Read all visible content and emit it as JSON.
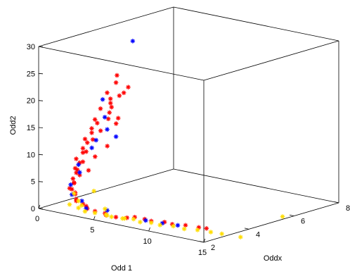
{
  "chart_data": {
    "type": "scatter3d",
    "title": "",
    "xlabel": "Odd 1",
    "ylabel": "Oddx",
    "zlabel": "Odd2",
    "xlim": [
      0,
      15
    ],
    "ylim": [
      2,
      8
    ],
    "zlim": [
      0,
      30
    ],
    "xticks": [
      "0",
      "5",
      "10",
      "15"
    ],
    "yticks": [
      "2",
      "4",
      "6",
      "8"
    ],
    "zticks": [
      "0",
      "5",
      "10",
      "15",
      "20",
      "25",
      "30"
    ],
    "marker": "*",
    "grid": false,
    "box": true,
    "series": [
      {
        "color": "#ff0000",
        "points": [
          [
            6.5,
            2.3,
            27
          ],
          [
            5.8,
            2.6,
            25
          ],
          [
            5.2,
            2.5,
            23
          ],
          [
            6.1,
            2.8,
            23
          ],
          [
            5.5,
            2.5,
            22
          ],
          [
            5.9,
            2.7,
            22.5
          ],
          [
            6.3,
            2.9,
            24
          ],
          [
            5.3,
            2.6,
            21
          ],
          [
            4.8,
            2.4,
            20
          ],
          [
            5.6,
            2.5,
            20.5
          ],
          [
            5.0,
            2.7,
            19
          ],
          [
            4.5,
            2.3,
            18
          ],
          [
            4.3,
            2.5,
            17
          ],
          [
            5.1,
            2.6,
            18
          ],
          [
            4.0,
            2.4,
            16
          ],
          [
            3.8,
            2.5,
            15
          ],
          [
            4.4,
            2.6,
            15.5
          ],
          [
            3.6,
            2.3,
            14
          ],
          [
            3.4,
            2.5,
            13
          ],
          [
            4.1,
            2.4,
            14
          ],
          [
            3.2,
            2.4,
            12
          ],
          [
            3.0,
            2.5,
            11
          ],
          [
            3.5,
            2.4,
            11.5
          ],
          [
            2.8,
            2.3,
            10
          ],
          [
            2.7,
            2.5,
            9
          ],
          [
            3.2,
            2.4,
            9.5
          ],
          [
            2.5,
            2.4,
            8
          ],
          [
            2.4,
            2.5,
            7
          ],
          [
            2.9,
            2.3,
            8
          ],
          [
            2.3,
            2.4,
            6
          ],
          [
            2.2,
            2.5,
            5
          ],
          [
            2.6,
            2.3,
            5.5
          ],
          [
            2.2,
            2.4,
            4
          ],
          [
            2.3,
            2.5,
            3
          ],
          [
            2.5,
            2.4,
            3.5
          ],
          [
            2.6,
            2.4,
            2
          ],
          [
            3.0,
            2.5,
            1.5
          ],
          [
            2.8,
            2.3,
            2.5
          ],
          [
            3.6,
            2.4,
            1
          ],
          [
            3.3,
            2.5,
            1.2
          ],
          [
            4.3,
            2.4,
            0.8
          ],
          [
            5.0,
            2.5,
            0.6
          ],
          [
            5.5,
            2.3,
            0.7
          ],
          [
            6.2,
            2.4,
            0.5
          ],
          [
            7.0,
            2.5,
            0.6
          ],
          [
            7.5,
            2.6,
            0.8
          ],
          [
            8.2,
            2.7,
            0.6
          ],
          [
            9.0,
            2.6,
            0.7
          ],
          [
            9.8,
            2.8,
            0.6
          ],
          [
            10.5,
            2.8,
            0.5
          ],
          [
            11.5,
            2.9,
            0.6
          ],
          [
            12.5,
            3.0,
            0.5
          ],
          [
            13.2,
            3.0,
            0.6
          ],
          [
            6.0,
            2.6,
            18.5
          ],
          [
            5.4,
            2.8,
            17
          ],
          [
            4.6,
            2.8,
            12.5
          ],
          [
            3.9,
            2.6,
            10.5
          ],
          [
            3.1,
            2.7,
            7.5
          ],
          [
            2.5,
            2.6,
            6.5
          ],
          [
            2.4,
            2.2,
            4.5
          ]
        ]
      },
      {
        "color": "#0000ff",
        "points": [
          [
            6.5,
            3.0,
            32.5
          ],
          [
            5.2,
            2.3,
            22
          ],
          [
            5.6,
            2.2,
            19
          ],
          [
            5.0,
            2.6,
            16
          ],
          [
            4.4,
            2.4,
            14
          ],
          [
            3.6,
            2.6,
            12
          ],
          [
            3.0,
            2.3,
            9
          ],
          [
            2.5,
            2.6,
            7
          ],
          [
            2.3,
            2.3,
            5
          ],
          [
            2.2,
            2.4,
            3
          ],
          [
            2.7,
            2.6,
            1.8
          ],
          [
            3.5,
            2.4,
            1
          ],
          [
            8.5,
            2.6,
            0.6
          ],
          [
            10.0,
            2.6,
            0.7
          ],
          [
            11.0,
            2.8,
            0.5
          ],
          [
            4.8,
            2.7,
            0.8
          ],
          [
            5.8,
            2.6,
            15
          ]
        ]
      },
      {
        "color": "#ffdd00",
        "points": [
          [
            2.4,
            2.2,
            1.5
          ],
          [
            3.0,
            2.3,
            1.0
          ],
          [
            3.8,
            2.2,
            0.8
          ],
          [
            4.5,
            2.3,
            0.7
          ],
          [
            5.3,
            2.4,
            0.6
          ],
          [
            6.0,
            2.3,
            0.6
          ],
          [
            6.8,
            2.4,
            0.5
          ],
          [
            7.6,
            2.5,
            0.6
          ],
          [
            8.4,
            2.4,
            0.5
          ],
          [
            9.2,
            2.5,
            0.6
          ],
          [
            10.0,
            2.5,
            0.5
          ],
          [
            11.0,
            2.6,
            0.6
          ],
          [
            12.0,
            2.6,
            0.5
          ],
          [
            13.0,
            2.7,
            0.6
          ],
          [
            14.0,
            2.8,
            0.5
          ],
          [
            15.0,
            2.8,
            0.6
          ],
          [
            16.5,
            2.9,
            0.5
          ],
          [
            15.0,
            5.5,
            0.5
          ],
          [
            3.2,
            2.2,
            2.5
          ],
          [
            2.6,
            2.3,
            3.5
          ],
          [
            4.2,
            2.4,
            4.5
          ],
          [
            3.5,
            2.2,
            1.8
          ],
          [
            4.8,
            2.6,
            1.2
          ],
          [
            5.8,
            2.2,
            0.9
          ],
          [
            7.2,
            2.3,
            0.8
          ]
        ]
      }
    ]
  }
}
